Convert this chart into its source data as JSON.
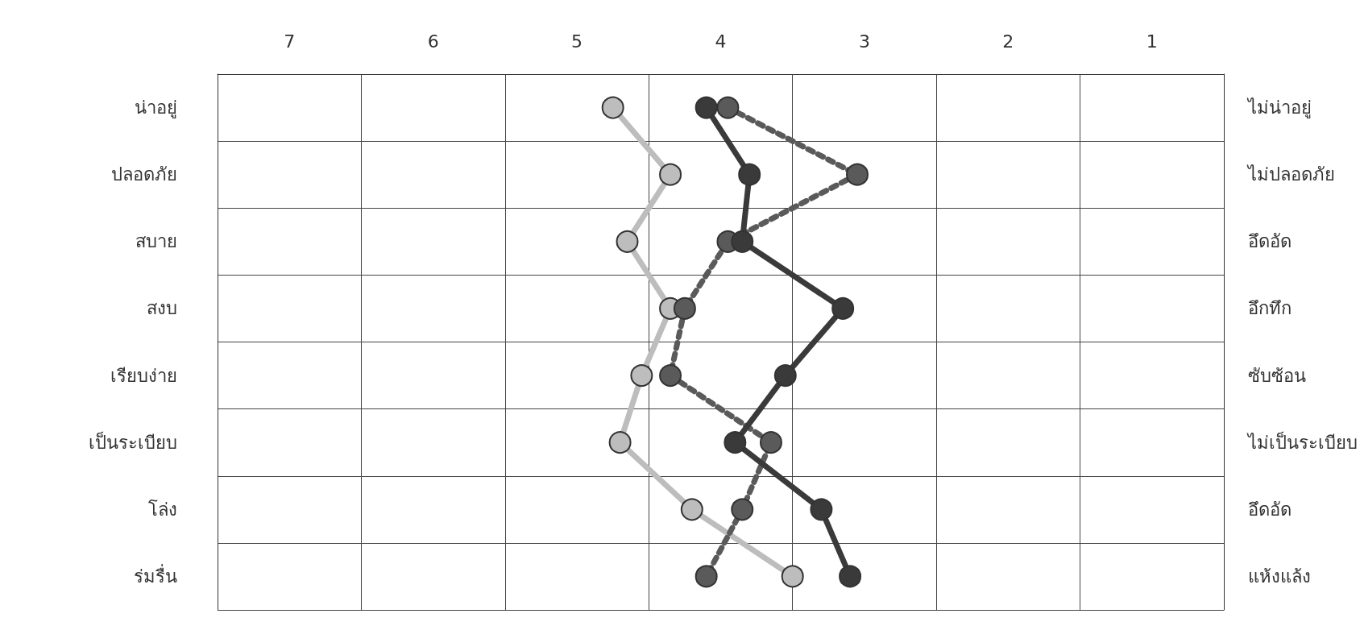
{
  "chart_data": {
    "type": "line",
    "orientation": "horizontal",
    "categories": [
      "น่าอยู่",
      "ปลอดภัย",
      "สบาย",
      "สงบ",
      "เรียบง่าย",
      "เป็นระเบียบ",
      "โล่ง",
      "ร่มรื่น"
    ],
    "y2_categories": [
      "ไม่น่าอยู่",
      "ไม่ปลอดภัย",
      "อึดอัด",
      "อึกทึก",
      "ซับซ้อน",
      "ไม่เป็นระเบียบ",
      "อึดอัด",
      "แห้งแล้ง"
    ],
    "xlim": [
      7.5,
      0.5
    ],
    "xticks": [
      7,
      6,
      5,
      4,
      3,
      2,
      1
    ],
    "grid": true,
    "marker": "circle",
    "series": [
      {
        "color": "#bdbdbd",
        "line_style": "solid",
        "values": [
          4.75,
          4.35,
          4.65,
          4.35,
          4.55,
          4.7,
          4.2,
          3.5
        ]
      },
      {
        "color": "#5a5a5a",
        "line_style": "dotted",
        "values": [
          3.95,
          3.05,
          3.95,
          4.25,
          4.35,
          3.65,
          3.85,
          4.1
        ]
      },
      {
        "color": "#3a3a3a",
        "line_style": "solid",
        "values": [
          4.1,
          3.8,
          3.85,
          3.15,
          3.55,
          3.9,
          3.3,
          3.1
        ]
      }
    ]
  }
}
